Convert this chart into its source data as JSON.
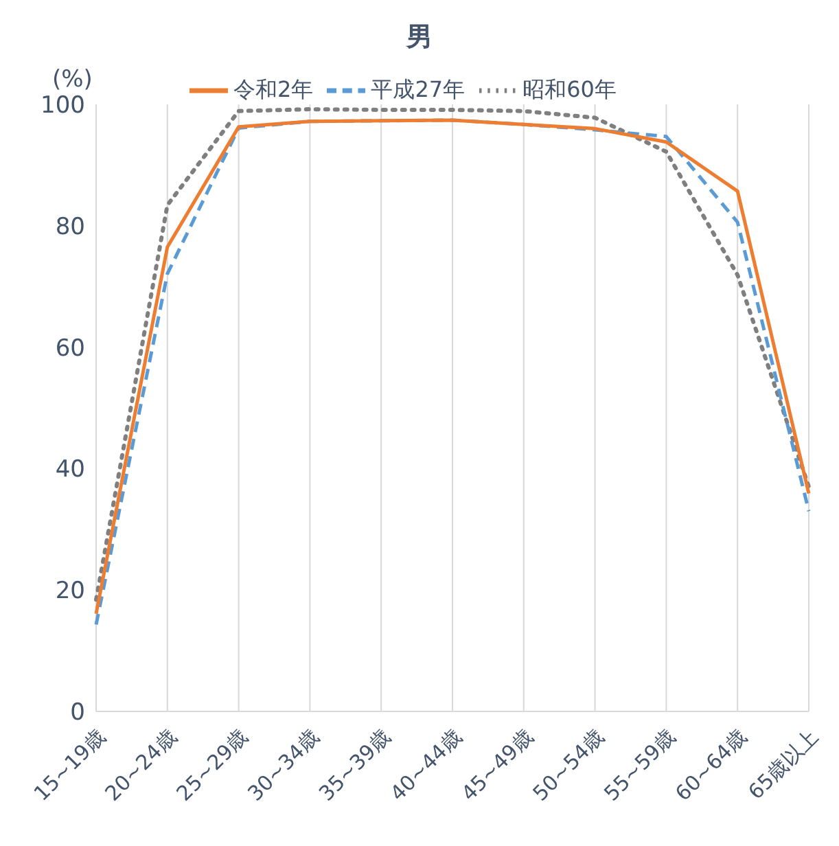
{
  "chart_data": {
    "type": "line",
    "title": "男",
    "ylabel": "(%)",
    "categories": [
      "15~19歳",
      "20~24歳",
      "25~29歳",
      "30~34歳",
      "35~39歳",
      "40~44歳",
      "45~49歳",
      "50~54歳",
      "55~59歳",
      "60~64歳",
      "65歳以上"
    ],
    "series": [
      {
        "name": "昭和60年",
        "color": "#7f7f7f",
        "line_style": "dotted",
        "values": [
          18.4,
          83.4,
          98.9,
          99.2,
          99.1,
          99.1,
          98.9,
          97.8,
          92.2,
          71.9,
          37.0
        ]
      },
      {
        "name": "平成27年",
        "color": "#5b9bd5",
        "line_style": "dashed",
        "values": [
          14.3,
          72.1,
          96.1,
          97.2,
          97.3,
          97.4,
          96.7,
          95.8,
          94.7,
          80.6,
          33.0
        ]
      },
      {
        "name": "令和2年",
        "color": "#ed7d31",
        "line_style": "solid",
        "values": [
          16.1,
          76.5,
          96.3,
          97.2,
          97.3,
          97.4,
          96.7,
          96.0,
          93.8,
          85.7,
          35.9
        ]
      }
    ],
    "ylim": [
      0,
      100
    ],
    "yticks": [
      0,
      20,
      40,
      60,
      80,
      100
    ],
    "grid": "x",
    "legend": "top",
    "marker": "none"
  }
}
